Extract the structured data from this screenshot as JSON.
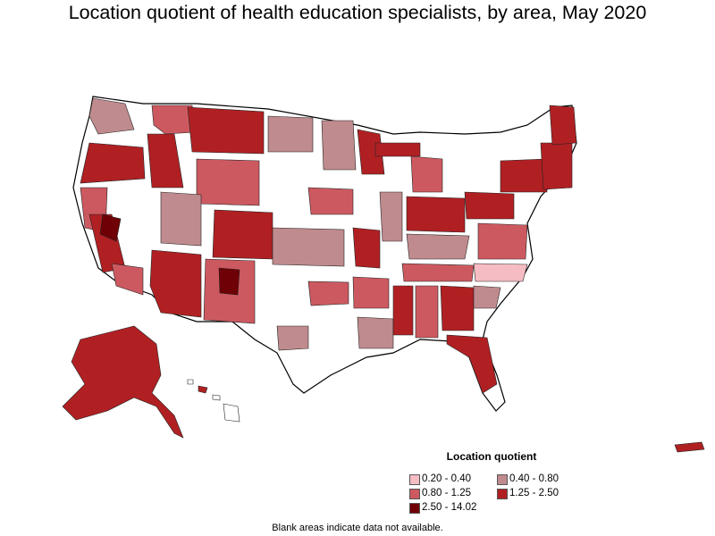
{
  "title": "Location quotient of health education specialists, by area, May 2020",
  "legend": {
    "title": "Location quotient",
    "items": [
      {
        "label": "0.20 - 0.40",
        "color": "#f6bcc3"
      },
      {
        "label": "0.40 - 0.80",
        "color": "#c08b8e"
      },
      {
        "label": "0.80 - 1.25",
        "color": "#cd5960"
      },
      {
        "label": "1.25 - 2.50",
        "color": "#b02023"
      },
      {
        "label": "2.50 - 14.02",
        "color": "#6e0006"
      }
    ]
  },
  "note": "Blank areas indicate data not available.",
  "colors": {
    "outline": "#000000",
    "no_data": "#ffffff"
  }
}
